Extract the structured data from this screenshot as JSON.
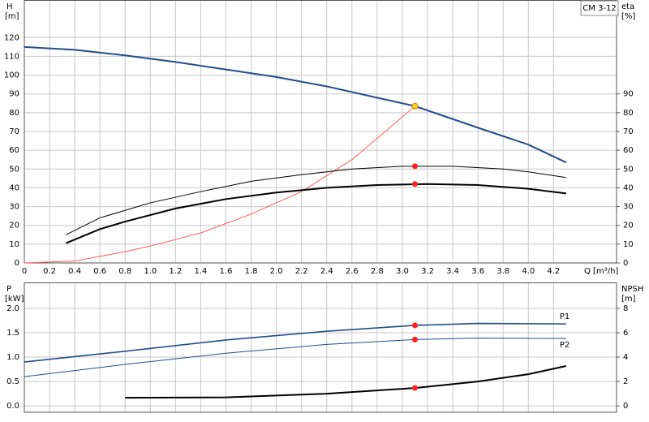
{
  "chart_data": [
    {
      "type": "line",
      "title": "CM 3-12",
      "ylabel": "H",
      "yunit": "[m]",
      "y2label": "eta",
      "y2unit": "[%]",
      "xlabel": "Q [m³/h]",
      "xlim": [
        0,
        4.7
      ],
      "xticks": [
        0,
        0.2,
        0.4,
        0.6,
        0.8,
        {
          "value": 1,
          "label": "1.0"
        },
        1.2,
        1.4,
        1.6,
        1.8,
        {
          "value": 2,
          "label": "2.0"
        },
        2.2,
        2.4,
        2.6,
        2.8,
        {
          "value": 3,
          "label": "3.0"
        },
        3.2,
        3.4,
        3.6,
        3.8,
        {
          "value": 4,
          "label": "4.0"
        },
        4.2
      ],
      "ylim": [
        0,
        140
      ],
      "yticks": [
        0,
        10,
        20,
        30,
        40,
        50,
        60,
        70,
        80,
        90,
        100,
        110,
        120
      ],
      "y2lim": [
        0,
        140
      ],
      "y2ticks": [
        0,
        10,
        20,
        30,
        40,
        50,
        60,
        70,
        80,
        90
      ],
      "grid": true,
      "series": [
        {
          "color": "#1f4e8c",
          "linewidth": 2,
          "x": [
            0,
            0.4,
            0.8,
            1.2,
            1.6,
            2.0,
            2.4,
            2.8,
            3.1,
            3.6,
            4.0,
            4.3
          ],
          "values": [
            115,
            113.5,
            110.5,
            107,
            103,
            99,
            94,
            88,
            83.5,
            72,
            63,
            53.5
          ]
        },
        {
          "color": "#ff5a5a",
          "linewidth": 1,
          "axis": "y2",
          "x": [
            0,
            0.4,
            0.6,
            0.8,
            1.0,
            1.4,
            1.8,
            2.2,
            2.6,
            2.9,
            3.1
          ],
          "values": [
            0,
            1,
            3.5,
            6,
            9,
            16,
            26,
            38,
            55,
            72,
            83.5
          ]
        },
        {
          "color": "#000000",
          "linewidth": 1,
          "axis": "y2",
          "x": [
            0.33,
            0.6,
            1.0,
            1.4,
            1.8,
            2.2,
            2.6,
            3.0,
            3.4,
            3.8,
            4.0,
            4.3
          ],
          "values": [
            15,
            24,
            32,
            38,
            43.5,
            47,
            50,
            51.5,
            51.5,
            50,
            48.5,
            45.5
          ]
        },
        {
          "color": "#000000",
          "linewidth": 2,
          "axis": "y2",
          "x": [
            0.33,
            0.6,
            0.8,
            1.2,
            1.6,
            2.0,
            2.4,
            2.8,
            3.2,
            3.6,
            4.0,
            4.3
          ],
          "values": [
            10.5,
            18,
            22,
            29,
            34,
            37.5,
            40,
            41.5,
            42,
            41.5,
            39.5,
            37
          ]
        }
      ],
      "markers": [
        {
          "x": 3.1,
          "y": 83.5,
          "color": "#ffd21f"
        },
        {
          "x": 3.1,
          "y": 51.5,
          "color": "#ff2020"
        },
        {
          "x": 3.1,
          "y": 42,
          "color": "#ff2020"
        }
      ]
    },
    {
      "type": "line",
      "ylabel": "P",
      "yunit": "[kW]",
      "y2label": "NPSH",
      "y2unit": "[m]",
      "xlim": [
        0,
        4.7
      ],
      "ylim": [
        -0.13,
        2.53
      ],
      "yticks": [
        {
          "value": 0,
          "label": "0.0"
        },
        0.5,
        {
          "value": 1,
          "label": "1.0"
        },
        1.5,
        {
          "value": 2,
          "label": "2.0"
        }
      ],
      "y2lim": [
        -0.52,
        10.12
      ],
      "y2ticks": [
        0,
        2,
        4,
        6,
        8
      ],
      "grid": true,
      "series": [
        {
          "name": "P1",
          "color": "#1f4e8c",
          "linewidth": 1.6,
          "x": [
            0,
            0.8,
            1.6,
            2.4,
            3.1,
            3.6,
            4.3
          ],
          "values": [
            0.9,
            1.12,
            1.35,
            1.53,
            1.65,
            1.69,
            1.68
          ]
        },
        {
          "name": "P2",
          "color": "#1f4e8c",
          "linewidth": 1,
          "x": [
            0,
            0.8,
            1.6,
            2.4,
            3.1,
            3.6,
            4.3
          ],
          "values": [
            0.6,
            0.85,
            1.08,
            1.26,
            1.36,
            1.39,
            1.38
          ]
        },
        {
          "color": "#000000",
          "linewidth": 2,
          "axis": "y2",
          "x": [
            0.8,
            1.6,
            2.4,
            3.1,
            3.6,
            4.0,
            4.3
          ],
          "values": [
            0.67,
            0.7,
            1.0,
            1.47,
            2.0,
            2.6,
            3.27
          ]
        }
      ],
      "markers": [
        {
          "x": 3.1,
          "y": 1.65,
          "color": "#ff2020"
        },
        {
          "x": 3.1,
          "y": 1.36,
          "color": "#ff2020"
        },
        {
          "x": 3.1,
          "y": 1.47,
          "color": "#ff2020",
          "axis": "y2"
        }
      ]
    }
  ]
}
